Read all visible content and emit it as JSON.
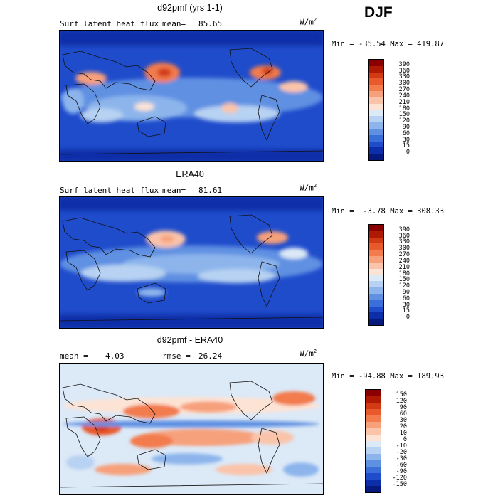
{
  "season": "DJF",
  "panels": [
    {
      "title": "d92pmf (yrs 1-1)",
      "left_label": "Surf latent heat flux",
      "right_label_name": "mean=",
      "right_label_value": "85.65",
      "units_base": "W/m",
      "units_exp": "2",
      "min_label": "Min =",
      "min_value": "-35.54",
      "max_label": "Max =",
      "max_value": "419.87",
      "colorbar_labels": [
        "390",
        "360",
        "330",
        "300",
        "270",
        "240",
        "210",
        "180",
        "150",
        "120",
        "90",
        "60",
        "30",
        "15",
        "0"
      ],
      "colors": [
        "#8a0000",
        "#b01a05",
        "#d23a14",
        "#e85a2c",
        "#f27c4e",
        "#f7a07c",
        "#fac4aa",
        "#fde3d4",
        "#dce9f7",
        "#b7d2f2",
        "#8db5ec",
        "#5f90e2",
        "#3a6ed8",
        "#1f4ccb",
        "#0c2ea8",
        "#061a7d"
      ]
    },
    {
      "title": "ERA40",
      "left_label": "Surf latent heat flux",
      "right_label_name": "mean=",
      "right_label_value": "81.61",
      "units_base": "W/m",
      "units_exp": "2",
      "min_label": "Min =",
      "min_value": "-3.78",
      "max_label": "Max =",
      "max_value": "308.33",
      "colorbar_labels": [
        "390",
        "360",
        "330",
        "300",
        "270",
        "240",
        "210",
        "180",
        "150",
        "120",
        "90",
        "60",
        "30",
        "15",
        "0"
      ],
      "colors": [
        "#8a0000",
        "#b01a05",
        "#d23a14",
        "#e85a2c",
        "#f27c4e",
        "#f7a07c",
        "#fac4aa",
        "#fde3d4",
        "#dce9f7",
        "#b7d2f2",
        "#8db5ec",
        "#5f90e2",
        "#3a6ed8",
        "#1f4ccb",
        "#0c2ea8",
        "#061a7d"
      ]
    },
    {
      "title": "d92pmf - ERA40",
      "left_label": "mean =",
      "left_value": "4.03",
      "right_label_name": "rmse =",
      "right_label_value": "26.24",
      "units_base": "W/m",
      "units_exp": "2",
      "min_label": "Min =",
      "min_value": "-94.88",
      "max_label": "Max =",
      "max_value": "189.93",
      "colorbar_labels": [
        "150",
        "120",
        "90",
        "60",
        "30",
        "20",
        "10",
        "0",
        "-10",
        "-20",
        "-30",
        "-60",
        "-90",
        "-120",
        "-150"
      ],
      "colors": [
        "#8a0000",
        "#b01a05",
        "#d23a14",
        "#e85a2c",
        "#f27c4e",
        "#f7a07c",
        "#fac4aa",
        "#fde3d4",
        "#dce9f7",
        "#b7d2f2",
        "#8db5ec",
        "#5f90e2",
        "#3a6ed8",
        "#1f4ccb",
        "#0c2ea8",
        "#061a7d"
      ]
    }
  ],
  "chart_data": [
    {
      "type": "heatmap",
      "title": "d92pmf (yrs 1-1)",
      "variable": "Surf latent heat flux",
      "units": "W/m2",
      "mean": 85.65,
      "min": -35.54,
      "max": 419.87,
      "contour_levels": [
        0,
        15,
        30,
        60,
        90,
        120,
        150,
        180,
        210,
        240,
        270,
        300,
        330,
        360,
        390
      ]
    },
    {
      "type": "heatmap",
      "title": "ERA40",
      "variable": "Surf latent heat flux",
      "units": "W/m2",
      "mean": 81.61,
      "min": -3.78,
      "max": 308.33,
      "contour_levels": [
        0,
        15,
        30,
        60,
        90,
        120,
        150,
        180,
        210,
        240,
        270,
        300,
        330,
        360,
        390
      ]
    },
    {
      "type": "heatmap",
      "title": "d92pmf - ERA40",
      "units": "W/m2",
      "mean": 4.03,
      "rmse": 26.24,
      "min": -94.88,
      "max": 189.93,
      "contour_levels": [
        -150,
        -120,
        -90,
        -60,
        -30,
        -20,
        -10,
        0,
        10,
        20,
        30,
        60,
        90,
        120,
        150
      ]
    }
  ]
}
